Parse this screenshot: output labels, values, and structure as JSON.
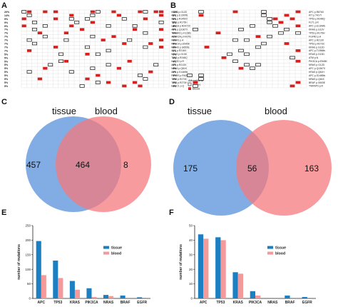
{
  "panels": {
    "A": "A",
    "B": "B",
    "C": "C",
    "D": "D",
    "E": "E",
    "F": "F"
  },
  "colors": {
    "mut_red": "#d6201e",
    "venn_blue": "#6b9fdf",
    "venn_red": "#f47a7e",
    "bar_tissue": "#1b7fc1",
    "bar_blood": "#f49a9a",
    "grid": "#dcdcdc"
  },
  "oncoprint_A": {
    "rows": [
      {
        "pct": "20%",
        "gene": "KRAS p.G12D"
      },
      {
        "pct": "14%",
        "gene": "APC p.E1309fs"
      },
      {
        "pct": "9%",
        "gene": "APC p.R1450X"
      },
      {
        "pct": "9%",
        "gene": "TP53 p.R175H"
      },
      {
        "pct": "9%",
        "gene": "LRP1B p.R2470X"
      },
      {
        "pct": "7%",
        "gene": "APC p.Q1367X"
      },
      {
        "pct": "7%",
        "gene": "TGFBR2 p.K128fs"
      },
      {
        "pct": "7%",
        "gene": "ACVR2A p.K437fs"
      },
      {
        "pct": "7%",
        "gene": "FGFR3 p.A"
      },
      {
        "pct": "7%",
        "gene": "PIK3CA p.E545K"
      },
      {
        "pct": "7%",
        "gene": "RNF43 p.G659fs"
      },
      {
        "pct": "7%",
        "gene": "APC p.R216X"
      },
      {
        "pct": "5%",
        "gene": "KRAS p.G13D"
      },
      {
        "pct": "5%",
        "gene": "TP53 p.R248Q"
      },
      {
        "pct": "5%",
        "gene": "KMT2D p.R"
      },
      {
        "pct": "5%",
        "gene": "APC p.R213X"
      },
      {
        "pct": "5%",
        "gene": "NRAS p.Q61K"
      },
      {
        "pct": "5%",
        "gene": "APC p.S1465fs"
      },
      {
        "pct": "5%",
        "gene": "PTPRS p.R628Q"
      },
      {
        "pct": "5%",
        "gene": "TP53 p.R273C"
      },
      {
        "pct": "5%",
        "gene": "TP53 p.R273H"
      },
      {
        "pct": "5%",
        "gene": "ERCC1 p.Q"
      }
    ],
    "legend_title": "Alterations",
    "legend_items": [
      "Tissue",
      "Blood"
    ]
  },
  "oncoprint_B": {
    "rows": [
      {
        "pct": "12%",
        "gene": "APC p.R876X"
      },
      {
        "pct": "8%",
        "gene": "KIT p.T417I"
      },
      {
        "pct": "8%",
        "gene": "TP53 p.R248Q"
      },
      {
        "pct": "8%",
        "gene": "FLT1 p.R"
      },
      {
        "pct": "8%",
        "gene": "APC p.E1309fs"
      },
      {
        "pct": "8%",
        "gene": "KRAS p.G12V"
      },
      {
        "pct": "6%",
        "gene": "TP53 p.R175H"
      },
      {
        "pct": "6%",
        "gene": "FGFR2 p.A"
      },
      {
        "pct": "6%",
        "gene": "APC p.R213X"
      },
      {
        "pct": "6%",
        "gene": "TP53 p.R273C"
      },
      {
        "pct": "6%",
        "gene": "KRAS p.G12D"
      },
      {
        "pct": "6%",
        "gene": "APC p.T1556fs"
      },
      {
        "pct": "6%",
        "gene": "KRAS p.G13D"
      },
      {
        "pct": "4%",
        "gene": "ATM p.N"
      },
      {
        "pct": "4%",
        "gene": "PIK3CA p.E545K"
      },
      {
        "pct": "4%",
        "gene": "NRAS p.G12D"
      },
      {
        "pct": "4%",
        "gene": "APC p.Q1367X"
      },
      {
        "pct": "4%",
        "gene": "KRAS p.Q61H"
      },
      {
        "pct": "4%",
        "gene": "APC p.S1465fs"
      },
      {
        "pct": "4%",
        "gene": "NRAS p.Q61K"
      },
      {
        "pct": "4%",
        "gene": "BRAF p.V600E"
      },
      {
        "pct": "4%",
        "gene": "TNFAIP3 p.R"
      }
    ]
  },
  "venn_C": {
    "left_label": "tissue",
    "right_label": "blood",
    "left_only": "457",
    "overlap": "464",
    "right_only": "8"
  },
  "venn_D": {
    "left_label": "tissue",
    "right_label": "blood",
    "left_only": "175",
    "overlap": "56",
    "right_only": "163"
  },
  "chart_data": [
    {
      "type": "bar",
      "panel": "E",
      "title": "",
      "xlabel": "",
      "ylabel": "number of mutations",
      "categories": [
        "APC",
        "TP53",
        "KRAS",
        "PIK3CA",
        "NRAS",
        "BRAF",
        "EGFR"
      ],
      "series": [
        {
          "name": "tissue",
          "values": [
            197,
            130,
            60,
            35,
            12,
            10,
            4
          ]
        },
        {
          "name": "blood",
          "values": [
            80,
            70,
            30,
            5,
            8,
            0,
            0
          ]
        }
      ],
      "ylim": [
        0,
        250
      ],
      "yticks": [
        0,
        50,
        100,
        150,
        200,
        250
      ],
      "legend": "top-right",
      "grid": false
    },
    {
      "type": "bar",
      "panel": "F",
      "title": "",
      "xlabel": "",
      "ylabel": "number of mutations",
      "categories": [
        "APC",
        "TP53",
        "KRAS",
        "PIK3CA",
        "NRAS",
        "BRAF",
        "EGFR"
      ],
      "series": [
        {
          "name": "tissue",
          "values": [
            44,
            42,
            18,
            5,
            0,
            2,
            1
          ]
        },
        {
          "name": "blood",
          "values": [
            41,
            40,
            17,
            2,
            0,
            0,
            0
          ]
        }
      ],
      "ylim": [
        0,
        50
      ],
      "yticks": [
        0,
        10,
        20,
        30,
        40,
        50
      ],
      "legend": "top-right",
      "grid": false
    }
  ]
}
